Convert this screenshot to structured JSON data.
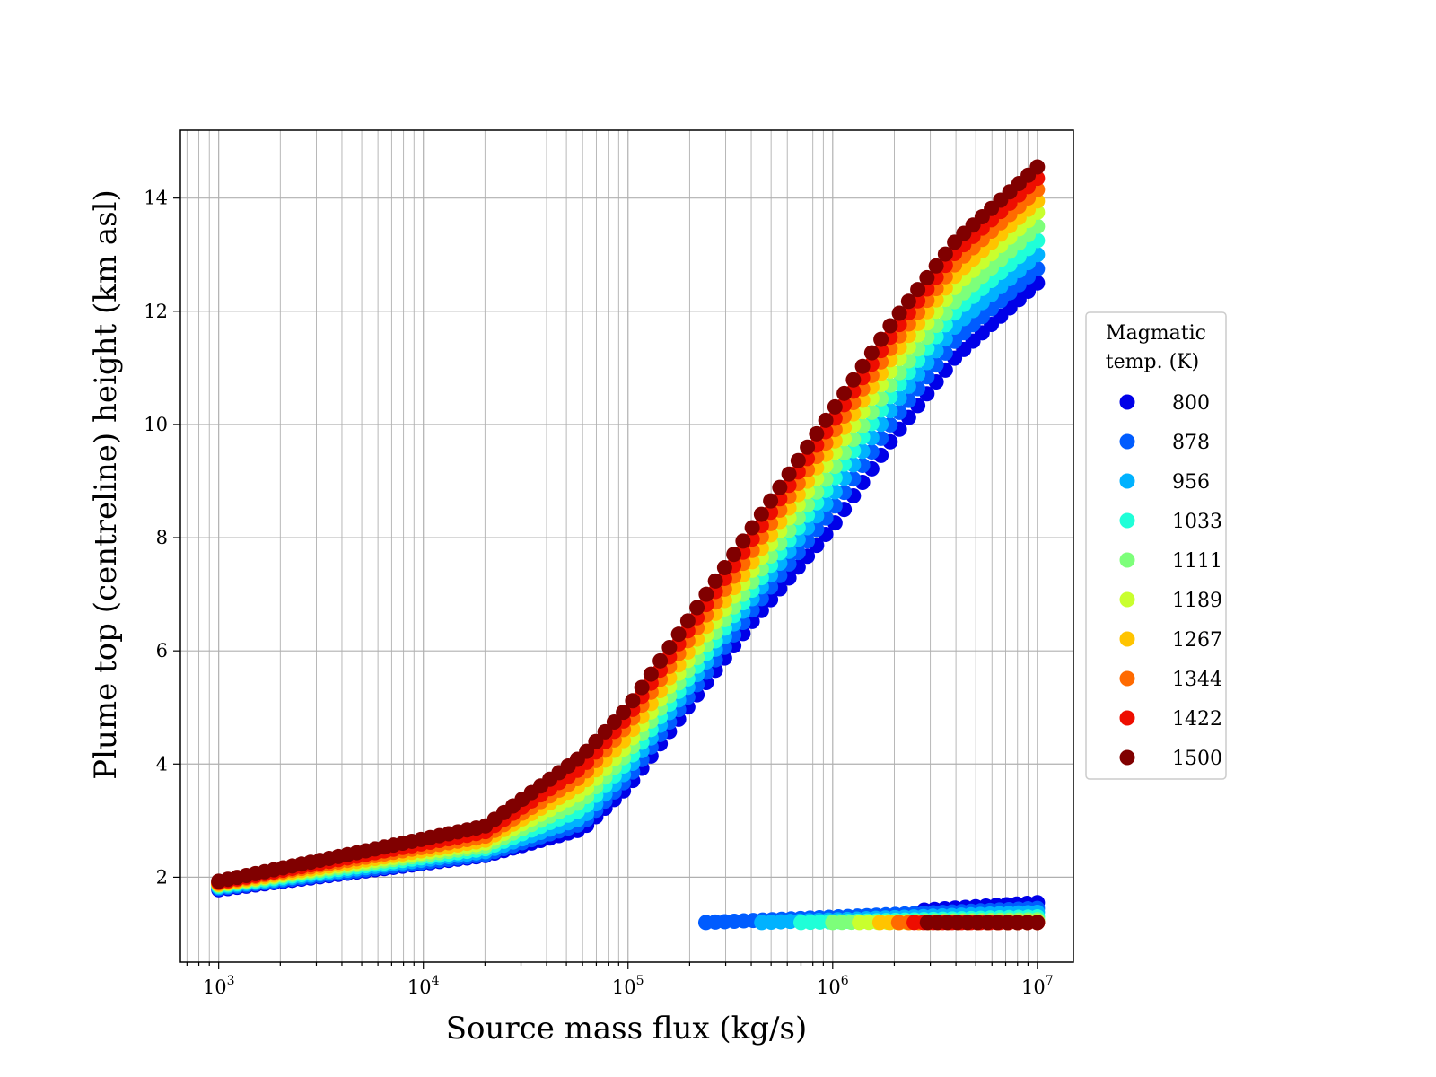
{
  "chart_data": {
    "type": "scatter",
    "title": "",
    "xlabel": "Source mass flux (kg/s)",
    "ylabel": "Plume top (centreline) height (km asl)",
    "x_scale": "log",
    "xlim": [
      650,
      15000000
    ],
    "ylim": [
      0.5,
      15.2
    ],
    "x_ticks": [
      {
        "value": 1000,
        "base": "10",
        "exp": "3"
      },
      {
        "value": 10000,
        "base": "10",
        "exp": "4"
      },
      {
        "value": 100000,
        "base": "10",
        "exp": "5"
      },
      {
        "value": 1000000,
        "base": "10",
        "exp": "6"
      },
      {
        "value": 10000000,
        "base": "10",
        "exp": "7"
      }
    ],
    "y_ticks": [
      2,
      4,
      6,
      8,
      10,
      12,
      14
    ],
    "grid": true,
    "legend": {
      "title_lines": [
        "Magmatic",
        "temp. (K)"
      ],
      "placement": "outside-right"
    },
    "series": [
      {
        "name": "800",
        "color": "#0000e8",
        "main": [
          [
            1000,
            1.78
          ],
          [
            20000,
            2.38
          ],
          [
            60000,
            2.85
          ],
          [
            100000,
            3.6
          ],
          [
            400000,
            6.5
          ],
          [
            1000000,
            8.2
          ],
          [
            2000000,
            9.8
          ],
          [
            4000000,
            11.2
          ],
          [
            10000000,
            12.5
          ]
        ],
        "lower": [
          [
            2800000,
            1.42
          ],
          [
            10000000,
            1.55
          ]
        ]
      },
      {
        "name": "878",
        "color": "#005cff",
        "main": [
          [
            1000,
            1.8
          ],
          [
            20000,
            2.4
          ],
          [
            60000,
            2.95
          ],
          [
            100000,
            3.75
          ],
          [
            400000,
            6.7
          ],
          [
            1000000,
            8.5
          ],
          [
            2000000,
            10.1
          ],
          [
            4000000,
            11.5
          ],
          [
            10000000,
            12.75
          ]
        ],
        "lower": [
          [
            240000,
            1.2
          ],
          [
            10000000,
            1.45
          ]
        ]
      },
      {
        "name": "956",
        "color": "#00b2ff",
        "main": [
          [
            1000,
            1.82
          ],
          [
            20000,
            2.45
          ],
          [
            60000,
            3.05
          ],
          [
            100000,
            3.9
          ],
          [
            400000,
            6.9
          ],
          [
            1000000,
            8.75
          ],
          [
            2000000,
            10.35
          ],
          [
            4000000,
            11.75
          ],
          [
            10000000,
            13.0
          ]
        ],
        "lower": [
          [
            450000,
            1.2
          ],
          [
            10000000,
            1.38
          ]
        ]
      },
      {
        "name": "1033",
        "color": "#1fffd8",
        "main": [
          [
            1000,
            1.84
          ],
          [
            20000,
            2.5
          ],
          [
            60000,
            3.2
          ],
          [
            100000,
            4.05
          ],
          [
            400000,
            7.05
          ],
          [
            1000000,
            9.0
          ],
          [
            2000000,
            10.6
          ],
          [
            4000000,
            12.0
          ],
          [
            10000000,
            13.25
          ]
        ],
        "lower": [
          [
            700000,
            1.2
          ],
          [
            10000000,
            1.3
          ]
        ]
      },
      {
        "name": "1111",
        "color": "#7dff7a",
        "main": [
          [
            1000,
            1.86
          ],
          [
            20000,
            2.55
          ],
          [
            60000,
            3.35
          ],
          [
            100000,
            4.2
          ],
          [
            400000,
            7.2
          ],
          [
            1000000,
            9.2
          ],
          [
            2000000,
            10.8
          ],
          [
            4000000,
            12.2
          ],
          [
            10000000,
            13.5
          ]
        ],
        "lower": [
          [
            1000000,
            1.2
          ],
          [
            10000000,
            1.25
          ]
        ]
      },
      {
        "name": "1189",
        "color": "#c9ff2e",
        "main": [
          [
            1000,
            1.87
          ],
          [
            20000,
            2.6
          ],
          [
            60000,
            3.5
          ],
          [
            100000,
            4.35
          ],
          [
            400000,
            7.4
          ],
          [
            1000000,
            9.45
          ],
          [
            2000000,
            11.05
          ],
          [
            4000000,
            12.45
          ],
          [
            10000000,
            13.75
          ]
        ],
        "lower": [
          [
            1350000,
            1.2
          ],
          [
            10000000,
            1.22
          ]
        ]
      },
      {
        "name": "1267",
        "color": "#ffc400",
        "main": [
          [
            1000,
            1.88
          ],
          [
            20000,
            2.65
          ],
          [
            60000,
            3.65
          ],
          [
            100000,
            4.5
          ],
          [
            400000,
            7.55
          ],
          [
            1000000,
            9.65
          ],
          [
            2000000,
            11.25
          ],
          [
            4000000,
            12.65
          ],
          [
            10000000,
            13.95
          ]
        ],
        "lower": [
          [
            1700000,
            1.2
          ],
          [
            10000000,
            1.2
          ]
        ]
      },
      {
        "name": "1344",
        "color": "#ff6a00",
        "main": [
          [
            1000,
            1.9
          ],
          [
            20000,
            2.72
          ],
          [
            60000,
            3.8
          ],
          [
            100000,
            4.7
          ],
          [
            400000,
            7.75
          ],
          [
            1000000,
            9.85
          ],
          [
            2000000,
            11.45
          ],
          [
            4000000,
            12.85
          ],
          [
            10000000,
            14.15
          ]
        ],
        "lower": [
          [
            2100000,
            1.2
          ],
          [
            10000000,
            1.2
          ]
        ]
      },
      {
        "name": "1422",
        "color": "#ee0d00",
        "main": [
          [
            1000,
            1.91
          ],
          [
            20000,
            2.8
          ],
          [
            60000,
            3.95
          ],
          [
            100000,
            4.85
          ],
          [
            400000,
            7.95
          ],
          [
            1000000,
            10.05
          ],
          [
            2000000,
            11.65
          ],
          [
            4000000,
            13.05
          ],
          [
            10000000,
            14.35
          ]
        ],
        "lower": [
          [
            2500000,
            1.2
          ],
          [
            10000000,
            1.2
          ]
        ]
      },
      {
        "name": "1500",
        "color": "#800000",
        "main": [
          [
            1000,
            1.93
          ],
          [
            20000,
            2.9
          ],
          [
            60000,
            4.15
          ],
          [
            100000,
            5.0
          ],
          [
            400000,
            8.15
          ],
          [
            1000000,
            10.25
          ],
          [
            2000000,
            11.85
          ],
          [
            4000000,
            13.25
          ],
          [
            10000000,
            14.55
          ]
        ],
        "lower": [
          [
            2900000,
            1.2
          ],
          [
            10000000,
            1.2
          ]
        ]
      }
    ]
  }
}
